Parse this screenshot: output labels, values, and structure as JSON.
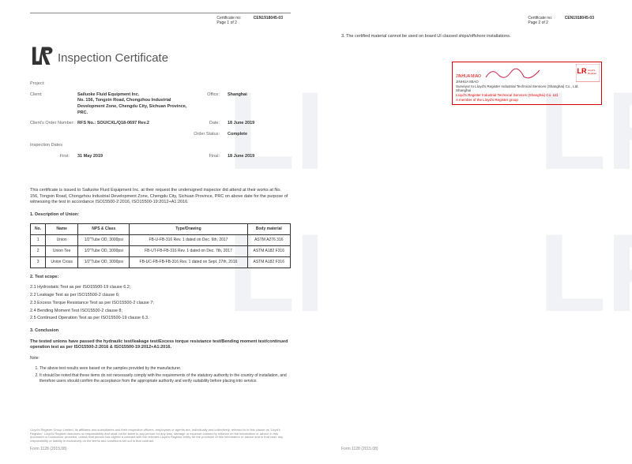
{
  "doc": {
    "cert_no_label": "Certificate no:",
    "cert_no": "CEN1918045-03",
    "page1_of": "Page 1 of 2",
    "page2_of": "Page 2 of 2"
  },
  "title": "Inspection Certificate",
  "info": {
    "project_lbl": "Project:",
    "project": "",
    "client_lbl": "Client:",
    "client": "Sailuoke Fluid Equipment Inc.\nNo. 156, Tongxin Road, Chongzhou Industrial Development Zone, Chengdu City, Sichuan Province, PRC.",
    "office_lbl": "Office:",
    "office": "Shanghai",
    "order_lbl": "Client's Order Number:",
    "order": "RFS No.: SOU/CXL/Q18-0697 Rev.2",
    "date_lbl": "Date:",
    "date": "18 June 2019",
    "status_lbl": "Order Status:",
    "status": "Complete",
    "insp_lbl": "Inspection Dates",
    "first_lbl": "First:",
    "first": "31 May 2019",
    "final_lbl": "Final:",
    "final": "18 June 2019"
  },
  "cert_text": "This certificate is issued to Sailuoke Fluid Equipment Inc. at their request the undersigned inspector did attend at their works at No. 156, Tongxin Road, Chongzhou Industrial Development Zone, Chengdu City, Sichuan Province, PRC on above date for the purpose of witnessing the test in accordance ISO15500-2:2016, ISO15500-19:2012+A1:2016.",
  "sec1_title": "1.    Description of Union:",
  "table": {
    "headers": [
      "No.",
      "Name",
      "NPS & Class",
      "Type/Drawing",
      "Body material"
    ],
    "rows": [
      [
        "1",
        "Union",
        "1/2\"Tube OD, 3000psi",
        "FB-U-FB-316 Rev. 1 dated on Dec. 6th, 2017",
        "ASTM A276 316"
      ],
      [
        "2",
        "Union Tee",
        "1/2\"Tube OD, 3000psi",
        "FB-UT-FB-FB-316 Rev. 1 dated on Dec. 7th, 2017",
        "ASTM A182 F316"
      ],
      [
        "3",
        "Union Cross",
        "1/2\"Tube OD, 3000psi",
        "FB-UC-FB-FB-FB-316 Rev. 1 dated on Sept. 27th, 2016",
        "ASTM A182 F316"
      ]
    ]
  },
  "sec2_title": "2.    Test scope:",
  "tests": [
    "2.1   Hydrostatic Test as per ISO15500-19 clause 6.2;",
    "2.2   Leakage Test as per ISO15500-2 clause 6;",
    "2.3   Excess Torque Resistance Test as per ISO15500-2 clause 7;",
    "2.4   Bending Moment Test ISO15500-2 clause 8;",
    "2.5   Continued Operation Test as per ISO15500-19 clause 6.3."
  ],
  "sec3_title": "3.    Conclusion",
  "conclusion": "The tested unions have passed the hydraulic test/leakage test/Excess torque resistance test/Bending moment test/continued operation test as per ISO15500-2:2016 & ISO15500-19:2012+A1:2016.",
  "note_lbl": "Note:",
  "notes": [
    "The above test results were based on the samples provided by the manufacturer.",
    "It should be noted that these items do not necessarily comply with the requirements of the statutory authority in the country of installation, and therefore users should confirm the acceptance from the appropriate authority and verify suitability before placing into service."
  ],
  "disclaimer": "Lloyd's Register Group Limited, its affiliates and subsidiaries and their respective officers, employees or agents are, individually and collectively, referred to in this clause as 'Lloyd's Register'. Lloyd's Register assumes no responsibility and shall not be liable to any person for any loss, damage or expense caused by reliance on the information or advice in this document or howsoever provided, unless that person has signed a contract with the relevant Lloyd's Register entity for the provision of this information or advice and in that case any responsibility or liability is exclusively on the terms and conditions set out in that contract.",
  "form": "Form 1128 (2015.08)",
  "pg2_item": "3.    The certified material cannot be used on board UI classed ships/offshore installations.",
  "sig": {
    "name": "JINHUA MIAO",
    "name2": "JINHUA MIAO",
    "role": "Surveyor to Lloyd's Register Industrial Technical Services (Shanghai) Co., Ltd.",
    "loc": "Shanghai",
    "org": "Lloyd's Register Industrial Technical Services (Shanghai) Co. Ltd.",
    "member": "A member of the Lloyd's Register group"
  },
  "colors": {
    "red": "#d00020",
    "wm": "#4a6a8a"
  }
}
